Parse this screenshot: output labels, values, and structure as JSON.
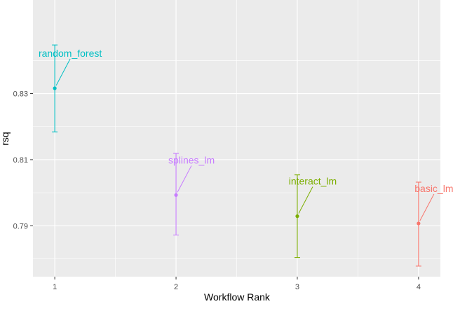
{
  "chart_data": {
    "type": "scatter",
    "title": "",
    "xlabel": "Workflow Rank",
    "ylabel": "rsq",
    "xlim": [
      0.82,
      4.18
    ],
    "ylim": [
      0.7746,
      0.8583
    ],
    "x_ticks": [
      1,
      2,
      3,
      4
    ],
    "y_ticks": [
      0.79,
      0.81,
      0.83
    ],
    "y_tick_labels": [
      "0.79",
      "0.81",
      "0.83"
    ],
    "grid": true,
    "legend": "none",
    "series": [
      {
        "label": "random_forest",
        "x": 1,
        "y": 0.8316,
        "lower": 0.8184,
        "upper": 0.8447,
        "color": "#00BFC4"
      },
      {
        "label": "splines_lm",
        "x": 2,
        "y": 0.7993,
        "lower": 0.7872,
        "upper": 0.8119,
        "color": "#C77CFF"
      },
      {
        "label": "interact_lm",
        "x": 3,
        "y": 0.7929,
        "lower": 0.7804,
        "upper": 0.8054,
        "color": "#7CAE00"
      },
      {
        "label": "basic_lm",
        "x": 4,
        "y": 0.7907,
        "lower": 0.7778,
        "upper": 0.8032,
        "color": "#F8766D"
      }
    ]
  }
}
